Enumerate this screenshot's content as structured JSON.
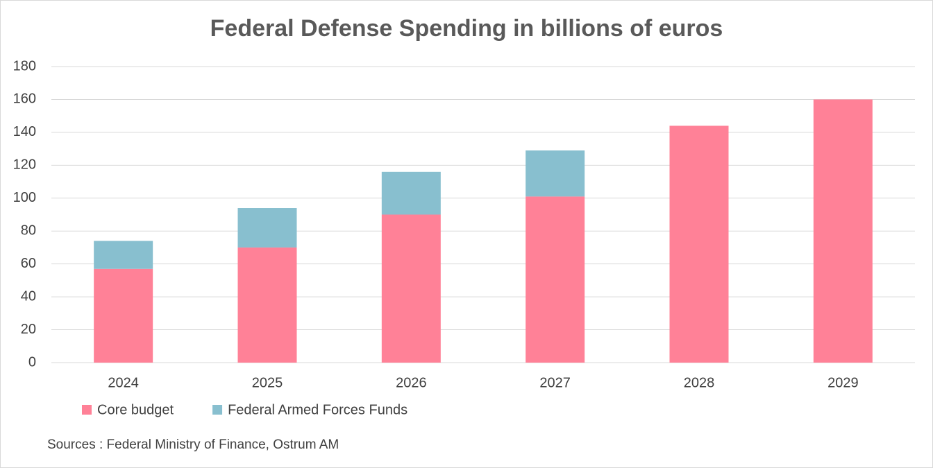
{
  "chart_data": {
    "type": "stacked_bar",
    "title": "Federal Defense Spending in billions of euros",
    "categories": [
      "2024",
      "2025",
      "2026",
      "2027",
      "2028",
      "2029"
    ],
    "series": [
      {
        "name": "Core budget",
        "color": "#ff8197",
        "values": [
          57,
          70,
          90,
          101,
          144,
          160
        ]
      },
      {
        "name": "Federal Armed Forces Funds",
        "color": "#88bfcf",
        "values": [
          17,
          24,
          26,
          28,
          null,
          null
        ]
      }
    ],
    "ylim": [
      0,
      180
    ],
    "yticks": [
      0,
      20,
      40,
      60,
      80,
      100,
      120,
      140,
      160,
      180
    ],
    "grid": true,
    "legend": "bottom-left",
    "source": "Sources : Federal Ministry of Finance, Ostrum AM"
  }
}
